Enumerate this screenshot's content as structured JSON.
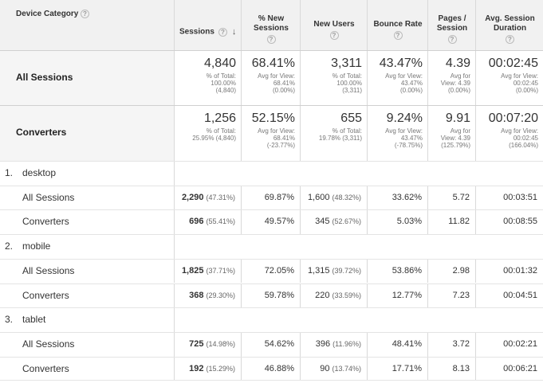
{
  "header": {
    "dimension": "Device Category",
    "columns": [
      {
        "line1": "Sessions",
        "line2": ""
      },
      {
        "line1": "% New",
        "line2": "Sessions"
      },
      {
        "line1": "New Users",
        "line2": ""
      },
      {
        "line1": "Bounce Rate",
        "line2": ""
      },
      {
        "line1": "Pages /",
        "line2": "Session"
      },
      {
        "line1": "Avg. Session",
        "line2": "Duration"
      }
    ]
  },
  "summary": [
    {
      "label": "All Sessions",
      "cells": [
        {
          "value": "4,840",
          "sub": [
            "% of Total:",
            "100.00%",
            "(4,840)"
          ]
        },
        {
          "value": "68.41%",
          "sub": [
            "Avg for View:",
            "68.41%",
            "(0.00%)"
          ]
        },
        {
          "value": "3,311",
          "sub": [
            "% of Total:",
            "100.00%",
            "(3,311)"
          ]
        },
        {
          "value": "43.47%",
          "sub": [
            "Avg for View:",
            "43.47%",
            "(0.00%)"
          ]
        },
        {
          "value": "4.39",
          "sub": [
            "Avg for",
            "View: 4.39",
            "(0.00%)"
          ]
        },
        {
          "value": "00:02:45",
          "sub": [
            "Avg for View:",
            "00:02:45",
            "(0.00%)"
          ]
        }
      ]
    },
    {
      "label": "Converters",
      "cells": [
        {
          "value": "1,256",
          "sub": [
            "% of Total:",
            "25.95% (4,840)"
          ]
        },
        {
          "value": "52.15%",
          "sub": [
            "Avg for View:",
            "68.41%",
            "(-23.77%)"
          ]
        },
        {
          "value": "655",
          "sub": [
            "% of Total:",
            "19.78% (3,311)"
          ]
        },
        {
          "value": "9.24%",
          "sub": [
            "Avg for View:",
            "43.47%",
            "(-78.75%)"
          ]
        },
        {
          "value": "9.91",
          "sub": [
            "Avg for",
            "View: 4.39",
            "(125.79%)"
          ]
        },
        {
          "value": "00:07:20",
          "sub": [
            "Avg for View:",
            "00:02:45",
            "(166.04%)"
          ]
        }
      ]
    }
  ],
  "groups": [
    {
      "index": "1.",
      "name": "desktop",
      "rows": [
        {
          "label": "All Sessions",
          "sessions": "2,290",
          "sessions_pct": "(47.31%)",
          "new_sessions": "69.87%",
          "new_users": "1,600",
          "new_users_pct": "(48.32%)",
          "bounce": "33.62%",
          "pages": "5.72",
          "duration": "00:03:51"
        },
        {
          "label": "Converters",
          "sessions": "696",
          "sessions_pct": "(55.41%)",
          "new_sessions": "49.57%",
          "new_users": "345",
          "new_users_pct": "(52.67%)",
          "bounce": "5.03%",
          "pages": "11.82",
          "duration": "00:08:55"
        }
      ]
    },
    {
      "index": "2.",
      "name": "mobile",
      "rows": [
        {
          "label": "All Sessions",
          "sessions": "1,825",
          "sessions_pct": "(37.71%)",
          "new_sessions": "72.05%",
          "new_users": "1,315",
          "new_users_pct": "(39.72%)",
          "bounce": "53.86%",
          "pages": "2.98",
          "duration": "00:01:32"
        },
        {
          "label": "Converters",
          "sessions": "368",
          "sessions_pct": "(29.30%)",
          "new_sessions": "59.78%",
          "new_users": "220",
          "new_users_pct": "(33.59%)",
          "bounce": "12.77%",
          "pages": "7.23",
          "duration": "00:04:51"
        }
      ]
    },
    {
      "index": "3.",
      "name": "tablet",
      "rows": [
        {
          "label": "All Sessions",
          "sessions": "725",
          "sessions_pct": "(14.98%)",
          "new_sessions": "54.62%",
          "new_users": "396",
          "new_users_pct": "(11.96%)",
          "bounce": "48.41%",
          "pages": "3.72",
          "duration": "00:02:21"
        },
        {
          "label": "Converters",
          "sessions": "192",
          "sessions_pct": "(15.29%)",
          "new_sessions": "46.88%",
          "new_users": "90",
          "new_users_pct": "(13.74%)",
          "bounce": "17.71%",
          "pages": "8.13",
          "duration": "00:06:21"
        }
      ]
    }
  ]
}
